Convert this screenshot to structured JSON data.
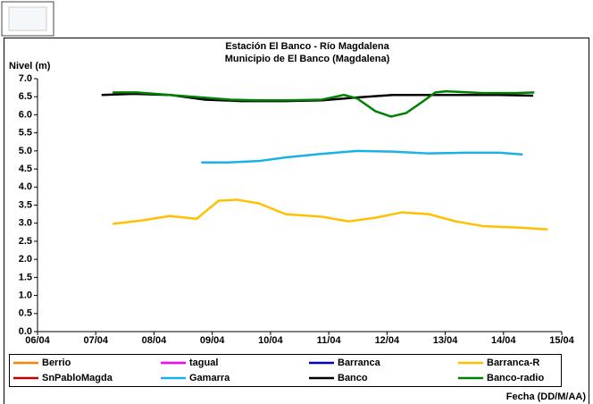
{
  "chart_data": {
    "type": "line",
    "title": "Estación El Banco - Río Magdalena",
    "subtitle": "Municipio de El Banco (Magdalena)",
    "y_label": "Nivel (m)",
    "x_label": "Fecha (DD/M/AA)",
    "xlim": [
      6,
      15
    ],
    "xticks": [
      {
        "value": 6,
        "label": "06/04"
      },
      {
        "value": 7,
        "label": "07/04"
      },
      {
        "value": 8,
        "label": "08/04"
      },
      {
        "value": 9,
        "label": "09/04"
      },
      {
        "value": 10,
        "label": "10/04"
      },
      {
        "value": 11,
        "label": "11/04"
      },
      {
        "value": 12,
        "label": "12/04"
      },
      {
        "value": 13,
        "label": "13/04"
      },
      {
        "value": 14,
        "label": "14/04"
      },
      {
        "value": 15,
        "label": "15/04"
      }
    ],
    "ylim": [
      0,
      7
    ],
    "yticks": [
      {
        "value": 0,
        "label": "0.0"
      },
      {
        "value": 0.5,
        "label": "0.5"
      },
      {
        "value": 1,
        "label": "1.0"
      },
      {
        "value": 1.5,
        "label": "1.5"
      },
      {
        "value": 2,
        "label": "2.0"
      },
      {
        "value": 2.5,
        "label": "2.5"
      },
      {
        "value": 3,
        "label": "3.0"
      },
      {
        "value": 3.5,
        "label": "3.5"
      },
      {
        "value": 4,
        "label": "4.0"
      },
      {
        "value": 4.5,
        "label": "4.5"
      },
      {
        "value": 5,
        "label": "5.0"
      },
      {
        "value": 5.5,
        "label": "5.5"
      },
      {
        "value": 6,
        "label": "6.0"
      },
      {
        "value": 6.5,
        "label": "6.5"
      },
      {
        "value": 7,
        "label": "7.0"
      }
    ],
    "legend": "bottom",
    "series": [
      {
        "name": "Berrio",
        "color": "#ff8000",
        "x": [],
        "values": []
      },
      {
        "name": "tagual",
        "color": "#ff00ff",
        "x": [],
        "values": []
      },
      {
        "name": "Barranca",
        "color": "#0000cc",
        "x": [],
        "values": []
      },
      {
        "name": "Barranca-R",
        "color": "#ffc000",
        "x": [
          7.29,
          7.81,
          8.27,
          8.73,
          9.11,
          9.42,
          9.8,
          10.26,
          10.88,
          11.34,
          11.8,
          12.26,
          12.72,
          13.18,
          13.64,
          14.25,
          14.76
        ],
        "values": [
          2.98,
          3.08,
          3.2,
          3.12,
          3.62,
          3.65,
          3.55,
          3.25,
          3.18,
          3.05,
          3.15,
          3.3,
          3.25,
          3.05,
          2.92,
          2.88,
          2.83
        ]
      },
      {
        "name": "SnPabloMagda",
        "color": "#c00000",
        "x": [],
        "values": []
      },
      {
        "name": "Gamarra",
        "color": "#1ab0e8",
        "x": [
          8.81,
          9.27,
          9.8,
          10.26,
          10.88,
          11.49,
          12.1,
          12.72,
          13.33,
          13.94,
          14.33
        ],
        "values": [
          4.68,
          4.68,
          4.72,
          4.82,
          4.92,
          5.0,
          4.98,
          4.93,
          4.95,
          4.95,
          4.9
        ]
      },
      {
        "name": "Banco",
        "color": "#000000",
        "x": [
          7.1,
          7.66,
          8.27,
          8.88,
          9.5,
          10.26,
          10.88,
          11.49,
          12.1,
          12.72,
          13.33,
          13.94,
          14.51
        ],
        "values": [
          6.55,
          6.58,
          6.55,
          6.42,
          6.38,
          6.38,
          6.4,
          6.48,
          6.55,
          6.55,
          6.55,
          6.55,
          6.53
        ]
      },
      {
        "name": "Banco-radio",
        "color": "#008000",
        "x": [
          7.29,
          7.7,
          8.27,
          8.81,
          9.31,
          9.8,
          10.29,
          10.88,
          11.26,
          11.49,
          11.8,
          12.07,
          12.33,
          12.6,
          12.83,
          13.02,
          13.64,
          14.22,
          14.53
        ],
        "values": [
          6.62,
          6.62,
          6.55,
          6.48,
          6.42,
          6.4,
          6.4,
          6.42,
          6.55,
          6.45,
          6.1,
          5.95,
          6.05,
          6.35,
          6.62,
          6.65,
          6.6,
          6.6,
          6.62
        ]
      }
    ]
  }
}
